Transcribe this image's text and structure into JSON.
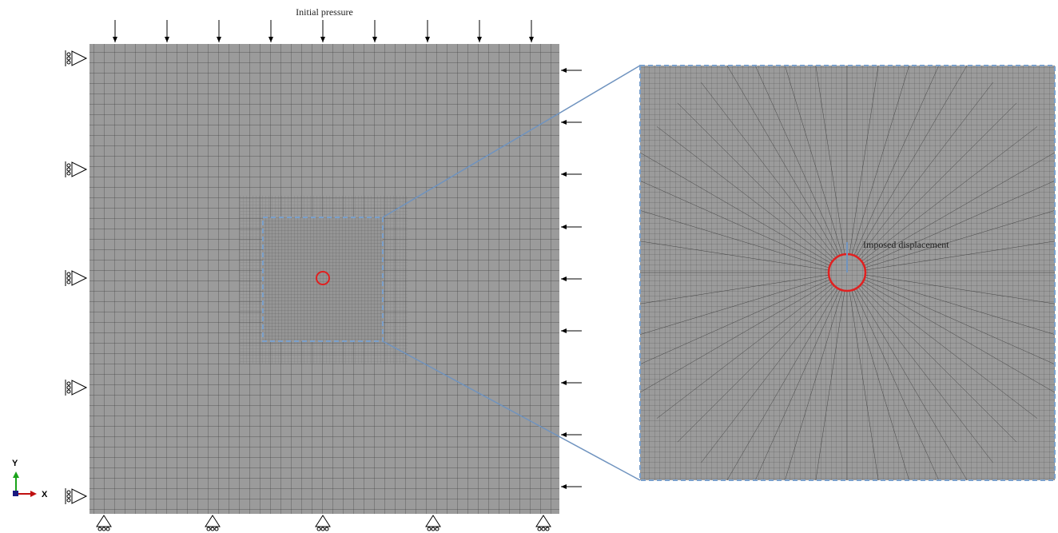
{
  "labels": {
    "top_load": "Initial pressure",
    "imposed": "Imposed displacement",
    "axis_y": "Y",
    "axis_x": "X"
  }
}
